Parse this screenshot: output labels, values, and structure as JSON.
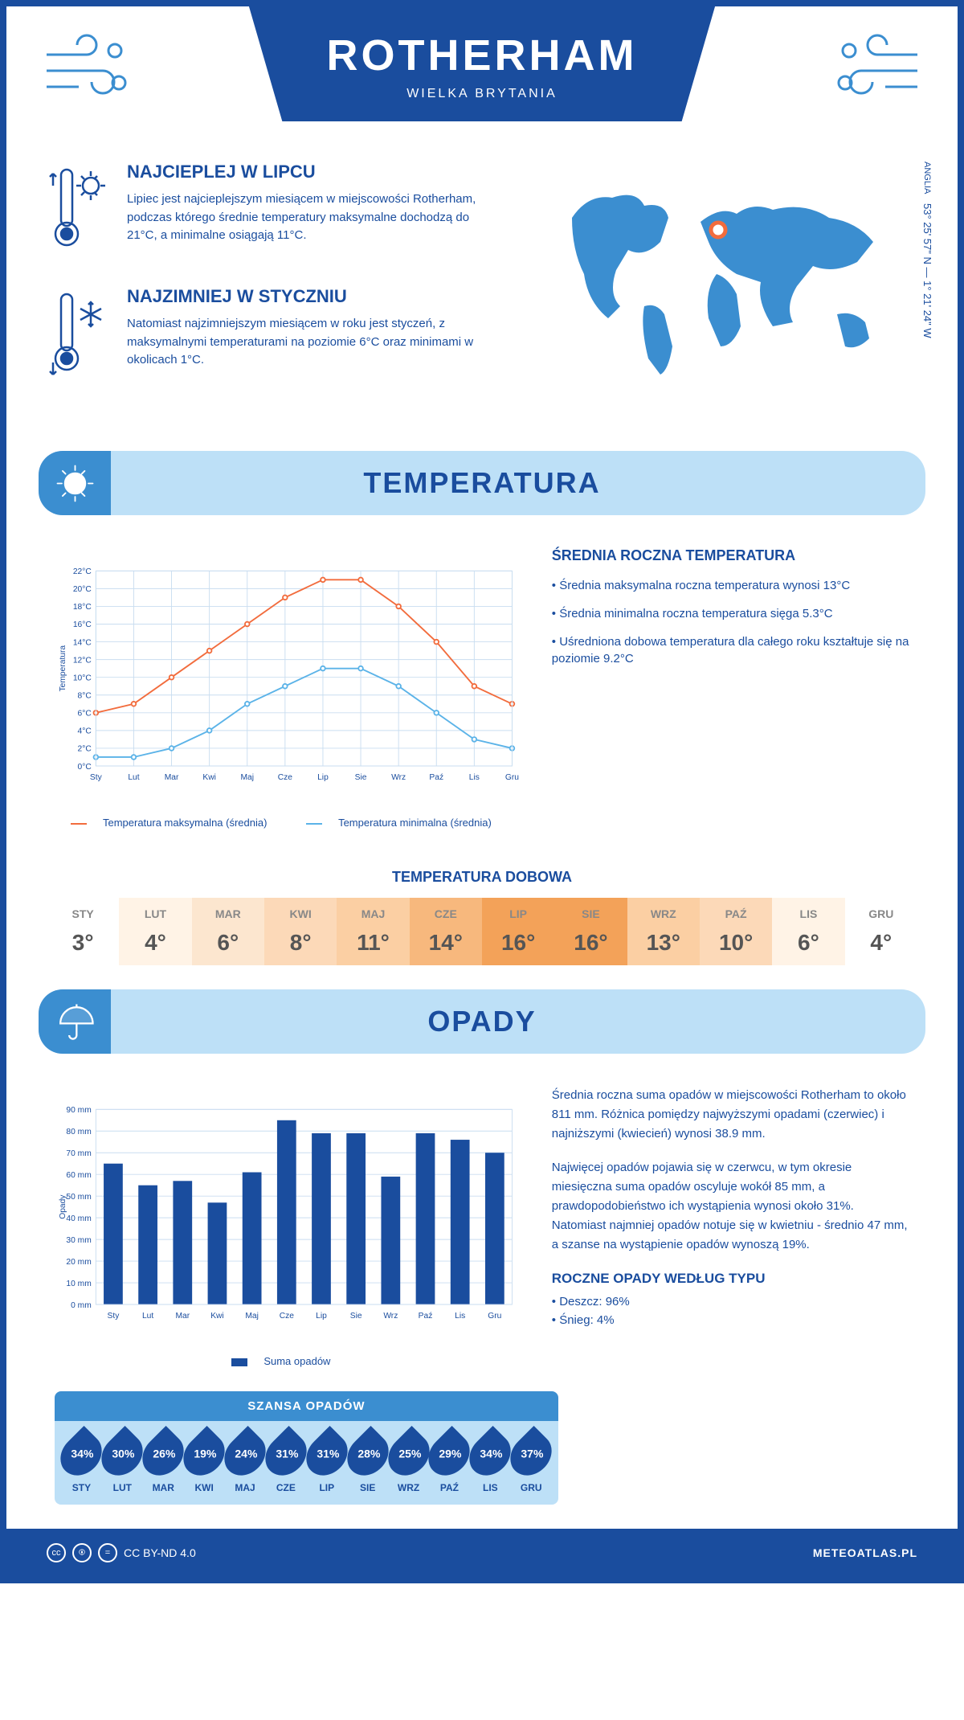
{
  "header": {
    "city": "ROTHERHAM",
    "country": "WIELKA BRYTANIA"
  },
  "coords": {
    "region": "ANGLIA",
    "text": "53° 25' 57\" N — 1° 21' 24\" W"
  },
  "intro": {
    "warm": {
      "title": "NAJCIEPLEJ W LIPCU",
      "text": "Lipiec jest najcieplejszym miesiącem w miejscowości Rotherham, podczas którego średnie temperatury maksymalne dochodzą do 21°C, a minimalne osiągają 11°C."
    },
    "cold": {
      "title": "NAJZIMNIEJ W STYCZNIU",
      "text": "Natomiast najzimniejszym miesiącem w roku jest styczeń, z maksymalnymi temperaturami na poziomie 6°C oraz minimami w okolicach 1°C."
    }
  },
  "temp_section": {
    "title": "TEMPERATURA"
  },
  "temp_chart": {
    "months": [
      "Sty",
      "Lut",
      "Mar",
      "Kwi",
      "Maj",
      "Cze",
      "Lip",
      "Sie",
      "Wrz",
      "Paź",
      "Lis",
      "Gru"
    ],
    "max_series": {
      "label": "Temperatura maksymalna (średnia)",
      "color": "#f26c3d",
      "values": [
        6,
        7,
        10,
        13,
        16,
        19,
        21,
        21,
        18,
        14,
        9,
        7
      ]
    },
    "min_series": {
      "label": "Temperatura minimalna (średnia)",
      "color": "#5bb3e8",
      "values": [
        1,
        1,
        2,
        4,
        7,
        9,
        11,
        11,
        9,
        6,
        3,
        2
      ]
    },
    "ylabel": "Temperatura",
    "ylim": [
      0,
      22
    ],
    "ystep": 2,
    "grid_color": "#c9ddf0",
    "bg": "#ffffff"
  },
  "temp_info": {
    "heading": "ŚREDNIA ROCZNA TEMPERATURA",
    "bullets": [
      "Średnia maksymalna roczna temperatura wynosi 13°C",
      "Średnia minimalna roczna temperatura sięga 5.3°C",
      "Uśredniona dobowa temperatura dla całego roku kształtuje się na poziomie 9.2°C"
    ]
  },
  "daily": {
    "title": "TEMPERATURA DOBOWA",
    "months": [
      "STY",
      "LUT",
      "MAR",
      "KWI",
      "MAJ",
      "CZE",
      "LIP",
      "SIE",
      "WRZ",
      "PAŹ",
      "LIS",
      "GRU"
    ],
    "values": [
      3,
      4,
      6,
      8,
      11,
      14,
      16,
      16,
      13,
      10,
      6,
      4
    ],
    "colors": [
      "#ffffff",
      "#fff3e6",
      "#fce6cf",
      "#fcd9b8",
      "#fbcfa3",
      "#f7b87d",
      "#f3a259",
      "#f3a259",
      "#fbcfa3",
      "#fcd9b8",
      "#fff3e6",
      "#ffffff"
    ]
  },
  "precip_section": {
    "title": "OPADY"
  },
  "precip_chart": {
    "months": [
      "Sty",
      "Lut",
      "Mar",
      "Kwi",
      "Maj",
      "Cze",
      "Lip",
      "Sie",
      "Wrz",
      "Paź",
      "Lis",
      "Gru"
    ],
    "values": [
      65,
      55,
      57,
      47,
      61,
      85,
      79,
      79,
      59,
      79,
      76,
      70
    ],
    "label": "Suma opadów",
    "color": "#1a4d9e",
    "ylabel": "Opady",
    "ylim": [
      0,
      90
    ],
    "ystep": 10,
    "grid_color": "#c9ddf0"
  },
  "precip_info": {
    "para1": "Średnia roczna suma opadów w miejscowości Rotherham to około 811 mm. Różnica pomiędzy najwyższymi opadami (czerwiec) i najniższymi (kwiecień) wynosi 38.9 mm.",
    "para2": "Najwięcej opadów pojawia się w czerwcu, w tym okresie miesięczna suma opadów oscyluje wokół 85 mm, a prawdopodobieństwo ich wystąpienia wynosi około 31%. Natomiast najmniej opadów notuje się w kwietniu - średnio 47 mm, a szanse na wystąpienie opadów wynoszą 19%.",
    "types_heading": "ROCZNE OPADY WEDŁUG TYPU",
    "types": [
      "Deszcz: 96%",
      "Śnieg: 4%"
    ]
  },
  "chance": {
    "title": "SZANSA OPADÓW",
    "months": [
      "STY",
      "LUT",
      "MAR",
      "KWI",
      "MAJ",
      "CZE",
      "LIP",
      "SIE",
      "WRZ",
      "PAŹ",
      "LIS",
      "GRU"
    ],
    "values": [
      "34%",
      "30%",
      "26%",
      "19%",
      "24%",
      "31%",
      "31%",
      "28%",
      "25%",
      "29%",
      "34%",
      "37%"
    ]
  },
  "footer": {
    "license": "CC BY-ND 4.0",
    "site": "METEOATLAS.PL"
  }
}
